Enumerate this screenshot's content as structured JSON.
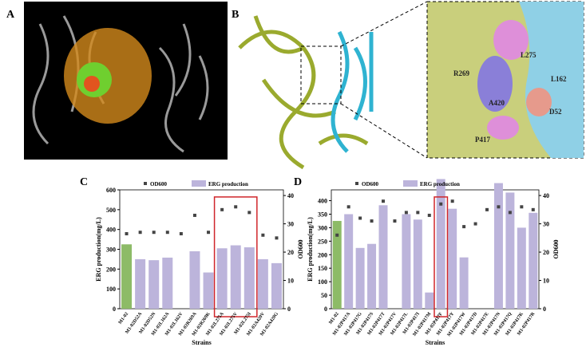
{
  "panels": {
    "a": "A",
    "b": "B",
    "residues": [
      "L275",
      "R269",
      "L162",
      "A420",
      "D52",
      "P417"
    ]
  },
  "chart_data": [
    {
      "type": "bar-dot",
      "label": "C",
      "ylabel": "ERG production(mg/L)",
      "y2label": "OD600",
      "xlabel": "Strains",
      "legend": [
        "OD600",
        "ERG production"
      ],
      "categories": [
        "M1-02",
        "M1-02D52A",
        "M1-02D52N",
        "M1-02L162A",
        "M1-02L162V",
        "M1-02R269A",
        "M1-02R269K",
        "M1-02L275A",
        "M1-02L275V",
        "M1-02L275I",
        "M1-02A420V",
        "M1-02A420G"
      ],
      "series": [
        {
          "name": "ERG production",
          "color": "#bcb4db",
          "control_color": "#8dbb67",
          "values": [
            325,
            250,
            245,
            258,
            null,
            290,
            183,
            305,
            320,
            310,
            250,
            230
          ]
        },
        {
          "name": "OD600",
          "color": "#444444",
          "axis": "y2",
          "values": [
            26.5,
            27,
            27,
            27,
            26.5,
            33,
            27,
            35,
            36,
            34,
            26,
            25
          ]
        }
      ],
      "highlight": [
        7,
        9
      ],
      "ylim": [
        0,
        600
      ],
      "yticks": [
        0,
        100,
        200,
        300,
        400,
        500,
        600
      ],
      "y2lim": [
        0,
        42
      ],
      "y2ticks": [
        0,
        10,
        20,
        30,
        40
      ]
    },
    {
      "type": "bar-dot",
      "label": "D",
      "ylabel": "ERG production(mg/L)",
      "y2label": "OD600",
      "xlabel": "Strains",
      "legend": [
        "OD600",
        "ERG production"
      ],
      "categories": [
        "M1-02",
        "M1-02P417A",
        "M1-02P417G",
        "M1-02P417S",
        "M1-02P417T",
        "M1-02P417V",
        "M1-02P417L",
        "M1-02P417I",
        "M1-02P417M",
        "M1-02P417F",
        "M1-02P417Y",
        "M1-02P417W",
        "M1-02P417D",
        "M1-02P417E",
        "M1-02P417N",
        "M1-02P417Q",
        "M1-02P417K",
        "M1-02P417R"
      ],
      "series": [
        {
          "name": "ERG production",
          "color": "#bcb4db",
          "control_color": "#8dbb67",
          "values": [
            325,
            350,
            225,
            240,
            383,
            null,
            350,
            330,
            60,
            480,
            370,
            190,
            null,
            null,
            465,
            430,
            300,
            355
          ]
        },
        {
          "name": "OD600",
          "color": "#444444",
          "axis": "y2",
          "values": [
            26,
            36,
            32,
            31,
            38,
            31,
            34,
            34,
            33,
            37,
            38,
            29,
            30,
            35,
            36,
            34,
            36,
            35
          ]
        }
      ],
      "highlight": [
        9,
        9
      ],
      "ylim": [
        0,
        440
      ],
      "yticks": [
        0,
        50,
        100,
        150,
        200,
        250,
        300,
        350,
        400
      ],
      "y2lim": [
        0,
        42
      ],
      "y2ticks": [
        0,
        10,
        20,
        30,
        40
      ]
    }
  ]
}
